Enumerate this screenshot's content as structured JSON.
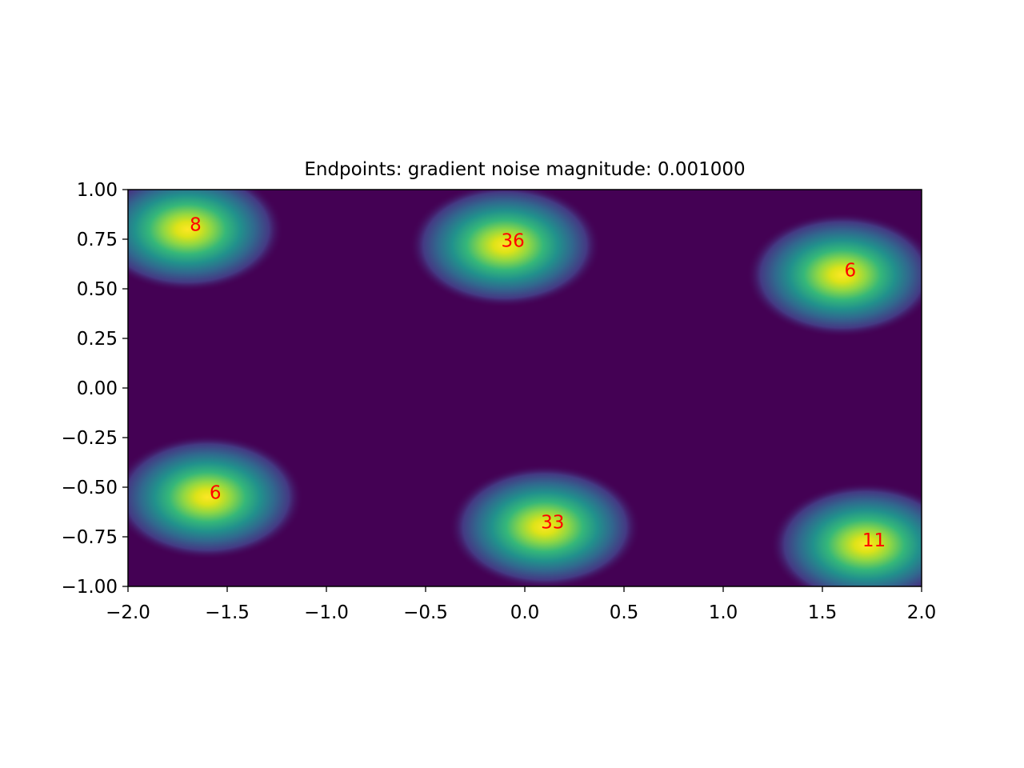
{
  "chart_data": {
    "type": "heatmap",
    "title": "Endpoints: gradient noise magnitude: 0.001000",
    "xlabel": "",
    "ylabel": "",
    "xlim": [
      -2.0,
      2.0
    ],
    "ylim": [
      -1.0,
      1.0
    ],
    "x_ticks": [
      -2.0,
      -1.5,
      -1.0,
      -0.5,
      0.0,
      0.5,
      1.0,
      1.5,
      2.0
    ],
    "x_tick_labels": [
      "−2.0",
      "−1.5",
      "−1.0",
      "−0.5",
      "0.0",
      "0.5",
      "1.0",
      "1.5",
      "2.0"
    ],
    "y_ticks": [
      1.0,
      0.75,
      0.5,
      0.25,
      0.0,
      -0.25,
      -0.5,
      -0.75,
      -1.0
    ],
    "y_tick_labels": [
      "1.00",
      "0.75",
      "0.50",
      "0.25",
      "0.00",
      "−0.25",
      "−0.50",
      "−0.75",
      "−1.00"
    ],
    "colormap": "viridis",
    "grid": false,
    "clusters": [
      {
        "x": -1.7,
        "y": 0.8,
        "count": "8"
      },
      {
        "x": -0.1,
        "y": 0.72,
        "count": "36"
      },
      {
        "x": 1.6,
        "y": 0.57,
        "count": "6"
      },
      {
        "x": -1.6,
        "y": -0.55,
        "count": "6"
      },
      {
        "x": 0.1,
        "y": -0.7,
        "count": "33"
      },
      {
        "x": 1.72,
        "y": -0.79,
        "count": "11"
      }
    ],
    "label_color": "#ff0000",
    "background_color": "#440154"
  }
}
